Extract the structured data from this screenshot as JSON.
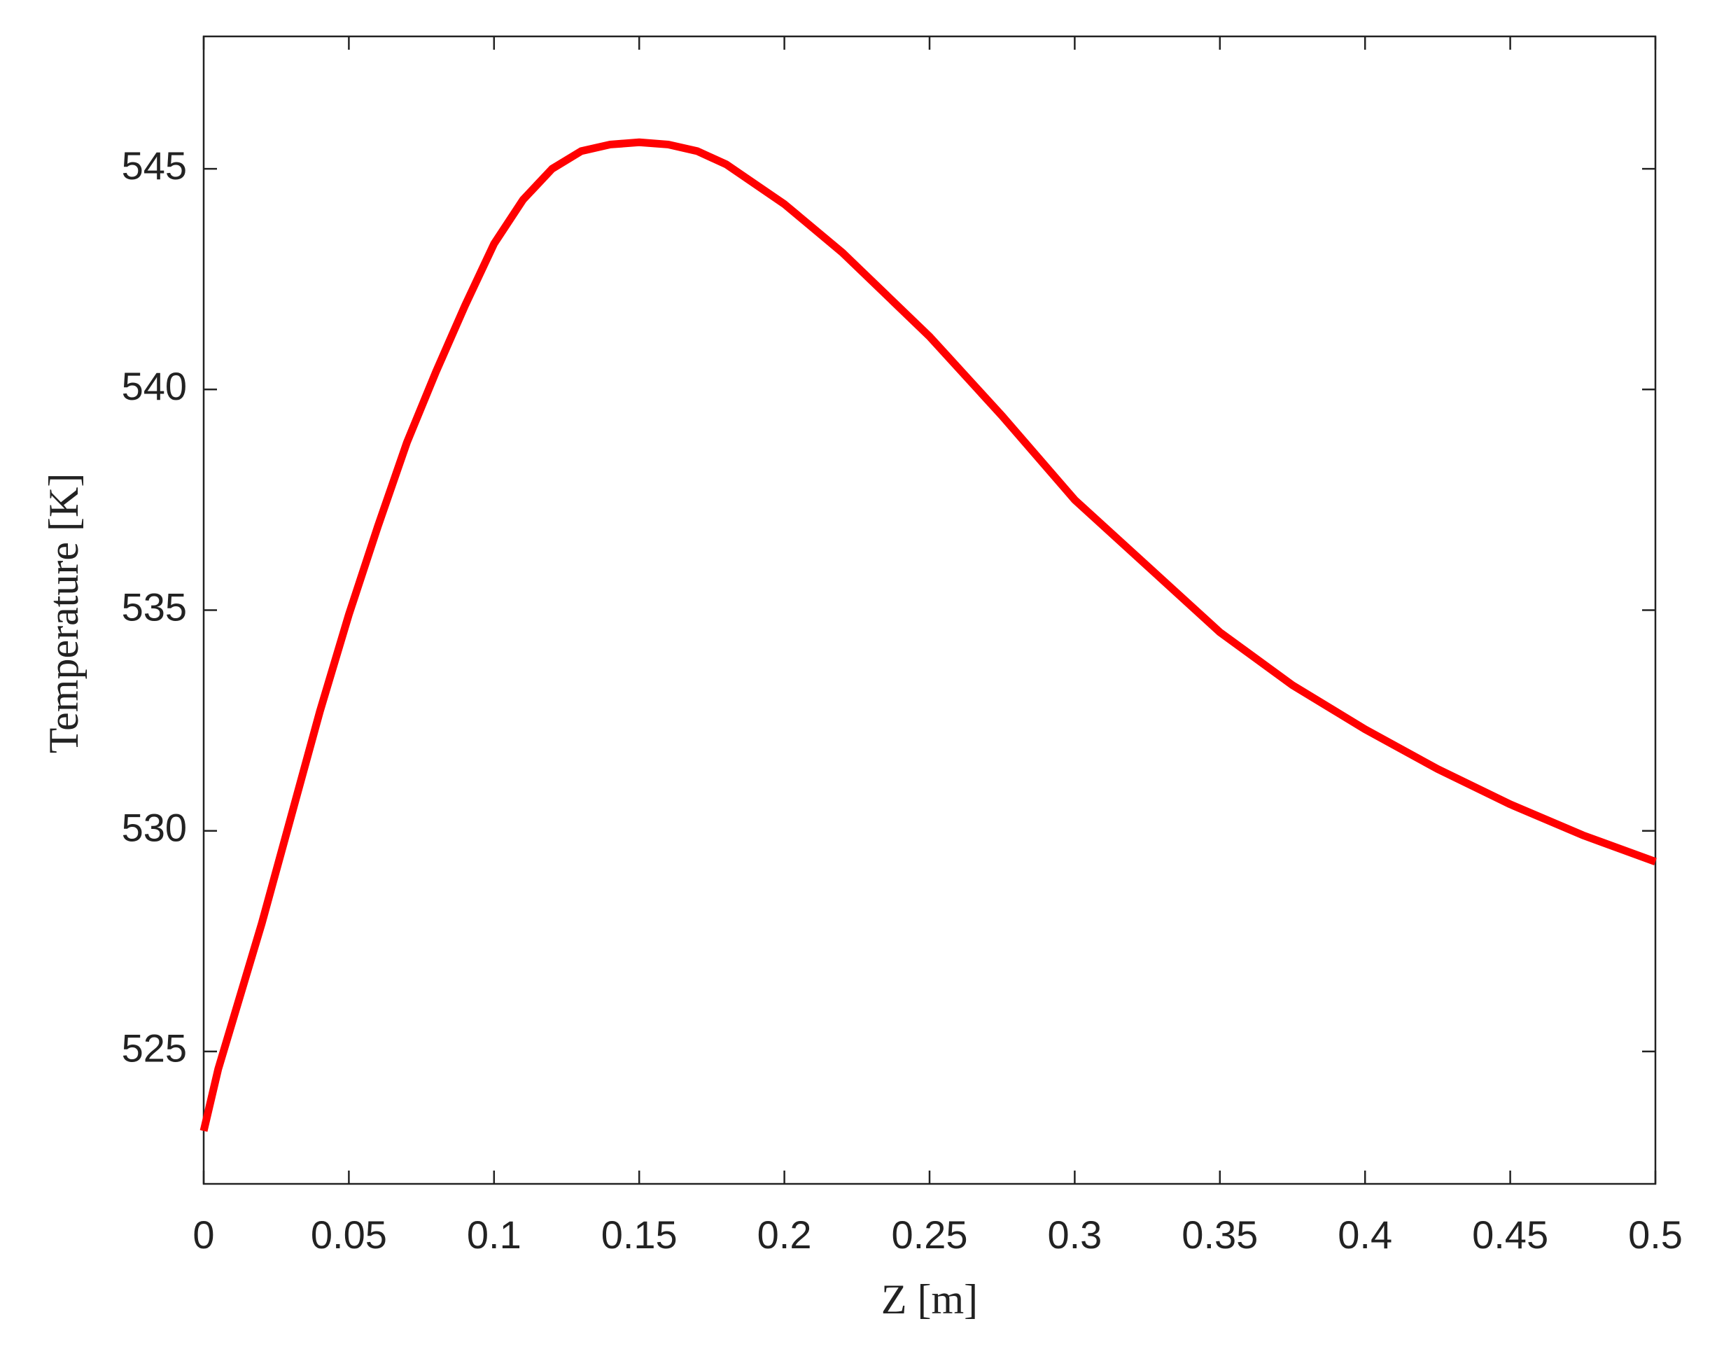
{
  "chart_data": {
    "type": "line",
    "xlabel": "Z [m]",
    "ylabel": "Temperature [K]",
    "series": [
      {
        "color": "#ff0000",
        "x": [
          0,
          0.005,
          0.01,
          0.02,
          0.03,
          0.04,
          0.05,
          0.06,
          0.07,
          0.08,
          0.09,
          0.1,
          0.11,
          0.12,
          0.13,
          0.14,
          0.15,
          0.16,
          0.17,
          0.18,
          0.2,
          0.22,
          0.25,
          0.275,
          0.3,
          0.325,
          0.35,
          0.375,
          0.4,
          0.425,
          0.45,
          0.475,
          0.5
        ],
        "values": [
          523.2,
          524.6,
          525.7,
          527.9,
          530.3,
          532.7,
          534.9,
          536.9,
          538.8,
          540.4,
          541.9,
          543.3,
          544.3,
          545.0,
          545.4,
          545.55,
          545.6,
          545.55,
          545.4,
          545.1,
          544.2,
          543.1,
          541.2,
          539.4,
          537.5,
          536.0,
          534.5,
          533.3,
          532.3,
          531.4,
          530.6,
          529.9,
          529.3
        ]
      }
    ],
    "xlim": [
      0,
      0.5
    ],
    "xticks": [
      0,
      0.05,
      0.1,
      0.15,
      0.2,
      0.25,
      0.3,
      0.35,
      0.4,
      0.45,
      0.5
    ],
    "ylim": [
      522,
      548
    ],
    "yticks": [
      525,
      530,
      535,
      540,
      545
    ],
    "grid": false
  }
}
